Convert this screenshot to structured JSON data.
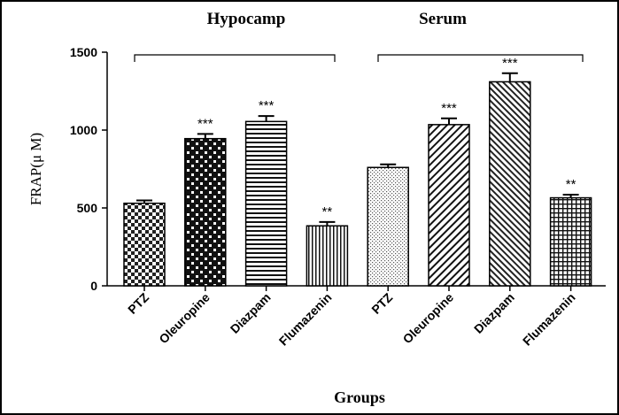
{
  "chart_data": {
    "type": "bar",
    "ylabel": "FRAP(μ M)",
    "xlabel": "Groups",
    "ylim": [
      0,
      1500
    ],
    "yticks": [
      0,
      500,
      1000,
      1500
    ],
    "groups": [
      {
        "title": "Hypocamp",
        "bars": [
          {
            "category": "PTZ",
            "value": 530,
            "error": 18,
            "significance": "",
            "pattern": "checker"
          },
          {
            "category": "Oleuropine",
            "value": 945,
            "error": 30,
            "significance": "***",
            "pattern": "checker-fine"
          },
          {
            "category": "Diazpam",
            "value": 1055,
            "error": 35,
            "significance": "***",
            "pattern": "hlines"
          },
          {
            "category": "Flumazenin",
            "value": 385,
            "error": 25,
            "significance": "**",
            "pattern": "vlines"
          }
        ]
      },
      {
        "title": "Serum",
        "bars": [
          {
            "category": "PTZ",
            "value": 760,
            "error": 20,
            "significance": "",
            "pattern": "dots"
          },
          {
            "category": "Oleuropine",
            "value": 1035,
            "error": 40,
            "significance": "***",
            "pattern": "diag-right"
          },
          {
            "category": "Diazpam",
            "value": 1310,
            "error": 55,
            "significance": "***",
            "pattern": "diag-left"
          },
          {
            "category": "Flumazenin",
            "value": 565,
            "error": 20,
            "significance": "**",
            "pattern": "grid"
          }
        ]
      }
    ]
  }
}
